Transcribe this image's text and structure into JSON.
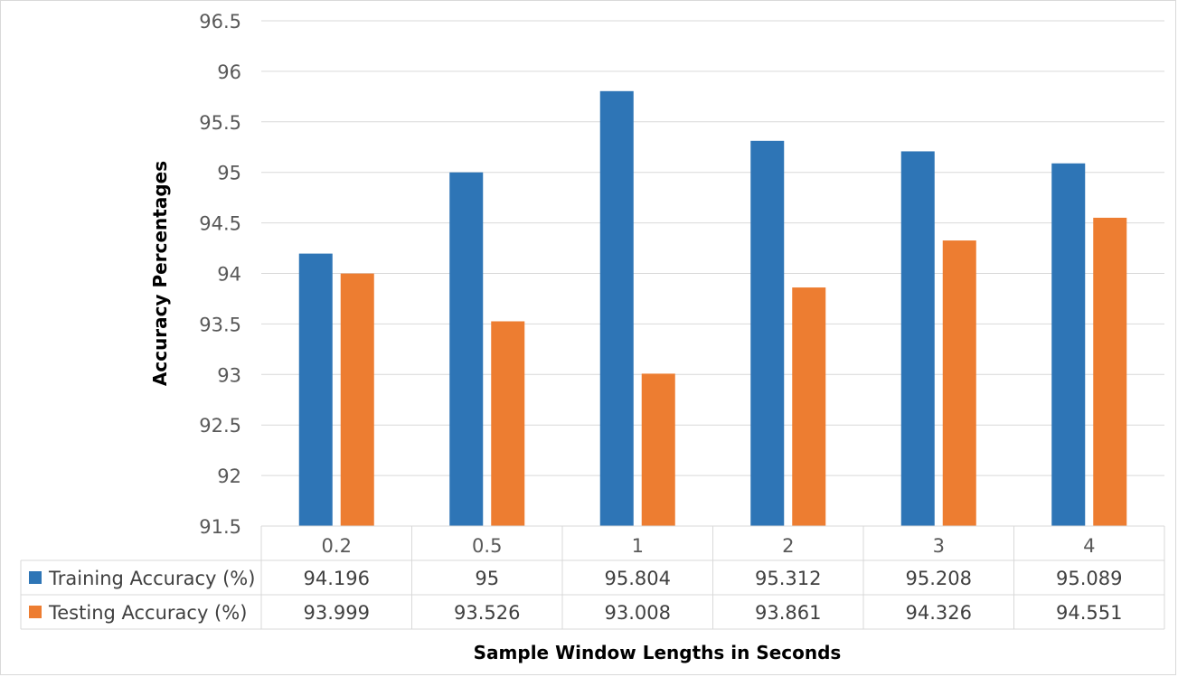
{
  "chart_data": {
    "type": "bar",
    "title": "",
    "xlabel": "Sample Window Lengths in Seconds",
    "ylabel": "Accuracy Percentages",
    "ylim": [
      91.5,
      96.5
    ],
    "ytick_step": 0.5,
    "yticks": [
      "91.5",
      "92",
      "92.5",
      "93",
      "93.5",
      "94",
      "94.5",
      "95",
      "95.5",
      "96",
      "96.5"
    ],
    "grid": true,
    "legend_placement": "data-table",
    "categories": [
      "0.2",
      "0.5",
      "1",
      "2",
      "3",
      "4"
    ],
    "series": [
      {
        "name": "Training Accuracy (%)",
        "color": "#2e75b6",
        "values": [
          94.196,
          95,
          95.804,
          95.312,
          95.208,
          95.089
        ],
        "labels": [
          "94.196",
          "95",
          "95.804",
          "95.312",
          "95.208",
          "95.089"
        ]
      },
      {
        "name": "Testing Accuracy (%)",
        "color": "#ed7d31",
        "values": [
          93.999,
          93.526,
          93.008,
          93.861,
          94.326,
          94.551
        ],
        "labels": [
          "93.999",
          "93.526",
          "93.008",
          "93.861",
          "94.326",
          "94.551"
        ]
      }
    ]
  }
}
